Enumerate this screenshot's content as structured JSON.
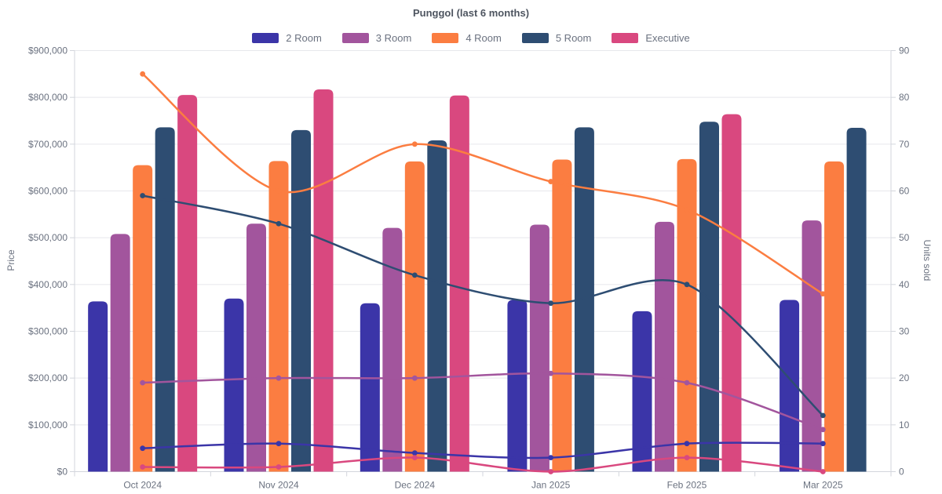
{
  "chart_data": {
    "type": "bar",
    "subtype": "grouped-bars-with-line-overlay-dual-axis",
    "title": "Punggol (last 6 months)",
    "categories": [
      "Oct 2024",
      "Nov 2024",
      "Dec 2024",
      "Jan 2025",
      "Feb 2025",
      "Mar 2025"
    ],
    "left_axis": {
      "label": "Price",
      "min": 0,
      "max": 900000,
      "tick_step": 100000,
      "tick_prefix": "$"
    },
    "right_axis": {
      "label": "Units sold",
      "min": 0,
      "max": 90,
      "tick_step": 10
    },
    "legend_position": "top",
    "grid": true,
    "series": [
      {
        "name": "2 Room",
        "color": "#3b35a8",
        "bar_prices": [
          364000,
          370000,
          360000,
          367000,
          343000,
          367000
        ],
        "line_units": [
          5,
          6,
          4,
          3,
          6,
          6
        ]
      },
      {
        "name": "3 Room",
        "color": "#a2559d",
        "bar_prices": [
          508000,
          530000,
          521000,
          528000,
          534000,
          537000
        ],
        "line_units": [
          19,
          20,
          20,
          21,
          19,
          9
        ]
      },
      {
        "name": "4 Room",
        "color": "#fb7d41",
        "bar_prices": [
          655000,
          664000,
          663000,
          667000,
          668000,
          663000
        ],
        "line_units": [
          85,
          60,
          70,
          62,
          56,
          38
        ]
      },
      {
        "name": "5 Room",
        "color": "#2e4d72",
        "bar_prices": [
          736000,
          730000,
          708000,
          736000,
          748000,
          735000
        ],
        "line_units": [
          59,
          53,
          42,
          36,
          40,
          12
        ]
      },
      {
        "name": "Executive",
        "color": "#d9487f",
        "bar_prices": [
          805000,
          817000,
          804000,
          null,
          764000,
          null
        ],
        "line_units": [
          1,
          1,
          3,
          0,
          3,
          0
        ]
      }
    ],
    "style_colors": {
      "grid_line": "#e7e8ec",
      "axis_border": "#d3d6dc",
      "tick_text": "#6b7280",
      "title_text": "#4e5560",
      "background": "#ffffff"
    }
  }
}
